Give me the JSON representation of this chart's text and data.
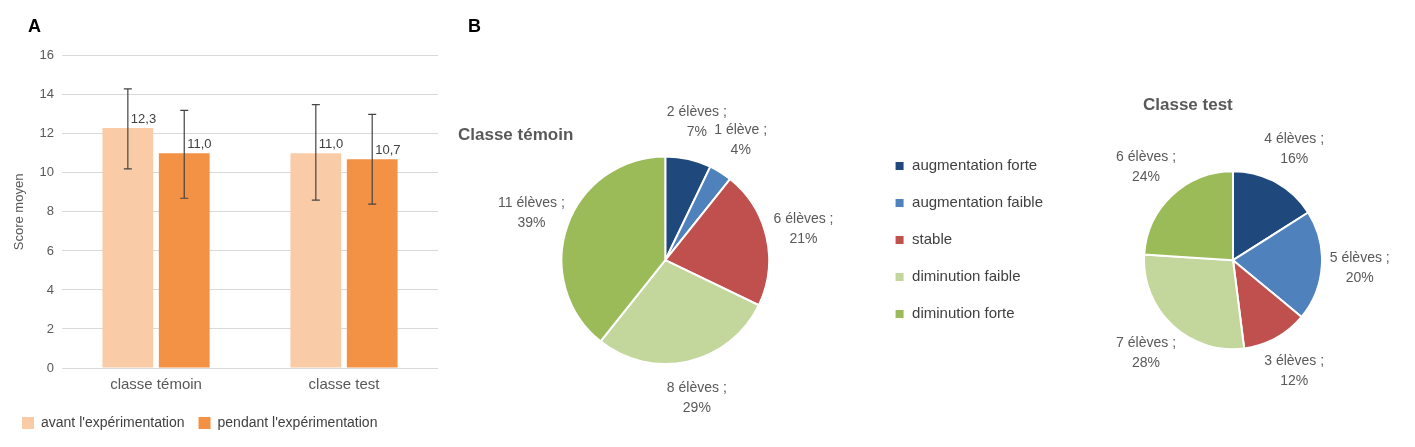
{
  "chart_data": [
    {
      "type": "bar",
      "annotations": [
        "A"
      ],
      "ylabel": "Score moyen",
      "categories": [
        "classe témoin",
        "classe test"
      ],
      "ylim": [
        0,
        16
      ],
      "yticks": [
        0,
        2,
        4,
        6,
        8,
        10,
        12,
        14,
        16
      ],
      "grid": "y",
      "legend": "bottom",
      "series": [
        {
          "name": "avant l'expérimentation",
          "color": "#f9cca7",
          "values": [
            12.3,
            11.0
          ],
          "value_labels": [
            "12,3",
            "11,0"
          ],
          "errors": [
            [
              10.2,
              14.3
            ],
            [
              8.6,
              13.5
            ]
          ]
        },
        {
          "name": "pendant l'expérimentation",
          "color": "#f39244",
          "values": [
            11.0,
            10.7
          ],
          "value_labels": [
            "11,0",
            "10,7"
          ],
          "errors": [
            [
              8.7,
              13.2
            ],
            [
              8.4,
              13.0
            ]
          ]
        }
      ]
    },
    {
      "type": "pie",
      "annotations": [
        "B"
      ],
      "title": "Classe témoin",
      "legend": "right",
      "categories": [
        "augmentation forte",
        "augmentation faible",
        "stable",
        "diminution faible",
        "diminution forte"
      ],
      "colors": [
        "#1f497d",
        "#4f81bd",
        "#c0504d",
        "#c3d69b",
        "#9bbb59"
      ],
      "values": [
        2,
        1,
        6,
        8,
        11
      ],
      "value_labels": [
        "2 élèves ; 7%",
        "1 élève ; 4%",
        "6 élèves ; 21%",
        "8 élèves ; 29%",
        "11 élèves ; 39%"
      ]
    },
    {
      "type": "pie",
      "title": "Classe test",
      "categories": [
        null,
        null,
        null,
        null,
        null
      ],
      "colors": [
        "#1f497d",
        "#4f81bd",
        "#c0504d",
        "#c3d69b",
        "#9bbb59"
      ],
      "values": [
        4,
        5,
        3,
        7,
        6
      ],
      "value_labels": [
        "4 élèves ; 16%",
        "5 élèves ; 20%",
        "3 élèves ; 12%",
        "7 élèves ; 28%",
        "6 élèves ; 24%"
      ]
    }
  ]
}
